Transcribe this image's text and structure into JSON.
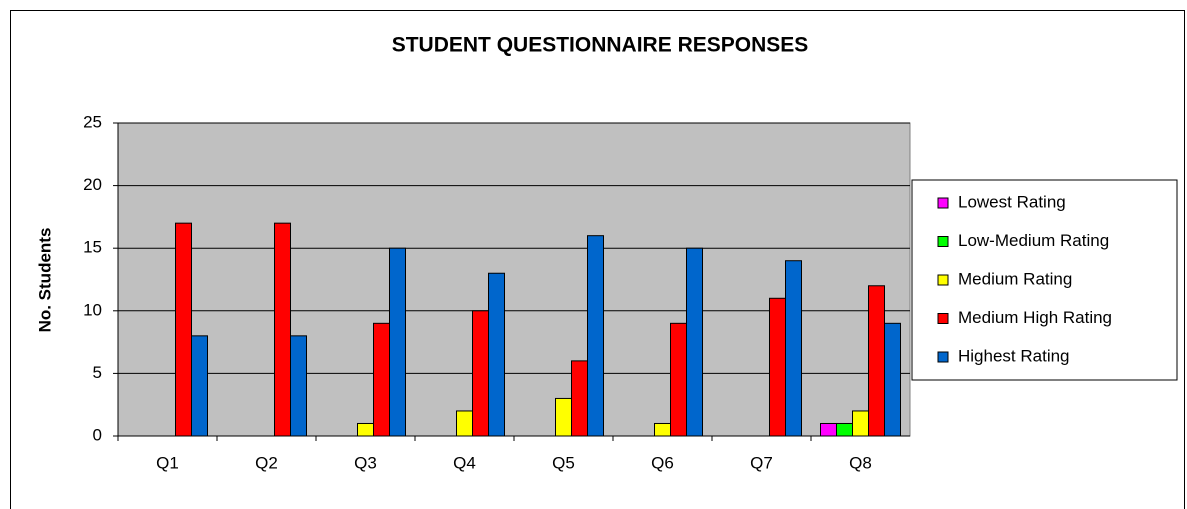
{
  "chart_data": {
    "type": "bar",
    "title": "STUDENT QUESTIONNAIRE RESPONSES",
    "y_label": "No. Students",
    "categories": [
      "Q1",
      "Q2",
      "Q3",
      "Q4",
      "Q5",
      "Q6",
      "Q7",
      "Q8"
    ],
    "series": [
      {
        "name": "Lowest Rating",
        "color": "#ff00ff",
        "values": [
          0,
          0,
          0,
          0,
          0,
          0,
          0,
          1
        ]
      },
      {
        "name": "Low-Medium Rating",
        "color": "#00ff00",
        "values": [
          0,
          0,
          0,
          0,
          0,
          0,
          0,
          1
        ]
      },
      {
        "name": "Medium Rating",
        "color": "#ffff00",
        "values": [
          0,
          0,
          1,
          2,
          3,
          1,
          0,
          2
        ]
      },
      {
        "name": "Medium High Rating",
        "color": "#ff0000",
        "values": [
          17,
          17,
          9,
          10,
          6,
          9,
          11,
          12
        ]
      },
      {
        "name": "Highest Rating",
        "color": "#0066cc",
        "values": [
          8,
          8,
          15,
          13,
          16,
          15,
          14,
          9
        ]
      }
    ],
    "ylim": [
      0,
      25
    ],
    "yticks": [
      0,
      5,
      10,
      15,
      20,
      25
    ],
    "grid": true,
    "legend": "right"
  }
}
